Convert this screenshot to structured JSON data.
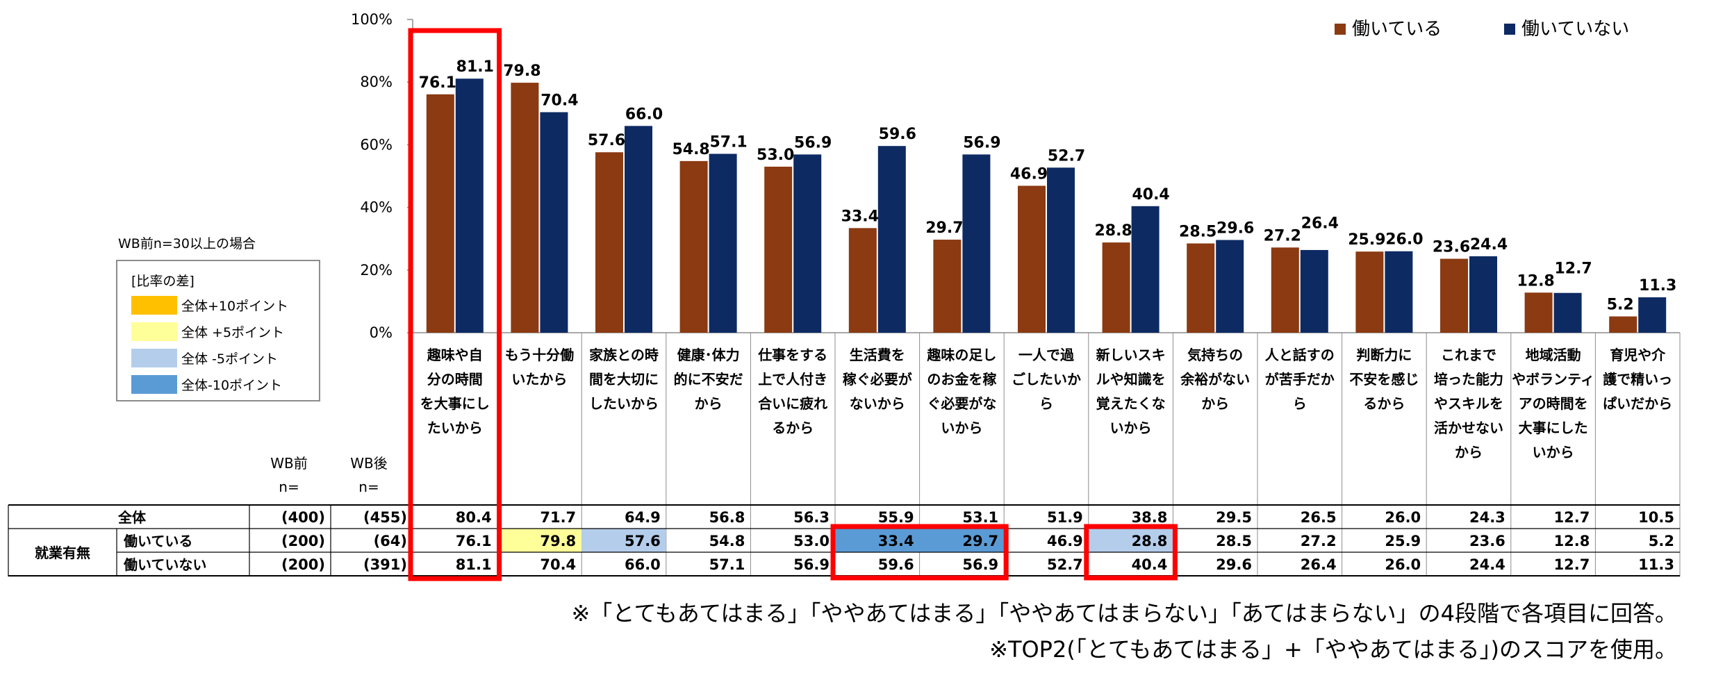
{
  "chart_data": {
    "type": "bar",
    "ylim": [
      0,
      100
    ],
    "y_ticks": [
      "100%",
      "80%",
      "60%",
      "40%",
      "20%",
      "0%"
    ],
    "categories": [
      "趣味や自分の時間を大事にしたいから",
      "もう十分働いたから",
      "家族との時間を大切にしたいから",
      "健康・体力的に不安だから",
      "仕事をする上で人付き合いに疲れるから",
      "生活費を稼ぐ必要がないから",
      "趣味の足しのお金を稼ぐ必要がないから",
      "一人で過ごしたいから",
      "新しいスキルや知識を覚えたくないから",
      "気持ちの余裕がないから",
      "人と話すのが苦手だから",
      "判断力に不安を感じるから",
      "これまで培った能力やスキルを活かせないから",
      "地域活動やボランティアの時間を大事にしたいから",
      "育児や介護で精いっぱいだから"
    ],
    "category_lines": [
      [
        "趣味や自",
        "分の時間",
        "を大事にし",
        "たいから"
      ],
      [
        "もう十分働",
        "いたから"
      ],
      [
        "家族との時",
        "間を大切に",
        "したいから"
      ],
      [
        "健康･体力",
        "的に不安だ",
        "から"
      ],
      [
        "仕事をする",
        "上で人付き",
        "合いに疲れ",
        "るから"
      ],
      [
        "生活費を",
        "稼ぐ必要が",
        "ないから"
      ],
      [
        "趣味の足し",
        "のお金を稼",
        "ぐ必要がな",
        "いから"
      ],
      [
        "一人で過",
        "ごしたいか",
        "ら"
      ],
      [
        "新しいスキ",
        "ルや知識を",
        "覚えたくな",
        "いから"
      ],
      [
        "気持ちの",
        "余裕がない",
        "から"
      ],
      [
        "人と話すの",
        "が苦手だか",
        "ら"
      ],
      [
        "判断力に",
        "不安を感じ",
        "るから"
      ],
      [
        "これまで",
        "培った能力",
        "やスキルを",
        "活かせない",
        "から"
      ],
      [
        "地域活動",
        "やボランティ",
        "アの時間を",
        "大事にした",
        "いから"
      ],
      [
        "育児や介",
        "護で精いっ",
        "ぱいだから"
      ]
    ],
    "series": [
      {
        "name": "働いている",
        "color": "#8B3A12",
        "values": [
          76.1,
          79.8,
          57.6,
          54.8,
          53.0,
          33.4,
          29.7,
          46.9,
          28.8,
          28.5,
          27.2,
          25.9,
          23.6,
          12.8,
          5.2
        ]
      },
      {
        "name": "働いていない",
        "color": "#0D2A63",
        "values": [
          81.1,
          70.4,
          66.0,
          57.1,
          56.9,
          59.6,
          56.9,
          52.7,
          40.4,
          29.6,
          26.4,
          26.0,
          24.4,
          12.7,
          11.3
        ]
      }
    ],
    "value_labels": [
      [
        "76.1",
        "79.8",
        "57.6",
        "54.8",
        "53.0",
        "33.4",
        "29.7",
        "46.9",
        "28.8",
        "28.5",
        "27.2",
        "25.9",
        "23.6",
        "12.8",
        "5.2"
      ],
      [
        "81.1",
        "70.4",
        "66.0",
        "57.1",
        "56.9",
        "59.6",
        "56.9",
        "52.7",
        "40.4",
        "29.6",
        "26.4",
        "26.0",
        "24.4",
        "12.7",
        "11.3"
      ]
    ],
    "legend_position": "top-right"
  },
  "table": {
    "header_wb_mae": [
      "WB前",
      "n="
    ],
    "header_wb_go": [
      "WB後",
      "n="
    ],
    "group_label": "就業有無",
    "rows": [
      {
        "label": "全体",
        "n_before": "(400)",
        "n_after": "(455)",
        "cells": [
          "80.4",
          "71.7",
          "64.9",
          "56.8",
          "56.3",
          "55.9",
          "53.1",
          "51.9",
          "38.8",
          "29.5",
          "26.5",
          "26.0",
          "24.3",
          "12.7",
          "10.5"
        ],
        "highlights": [
          "",
          "",
          "",
          "",
          "",
          "",
          "",
          "",
          "",
          "",
          "",
          "",
          "",
          "",
          ""
        ]
      },
      {
        "label": "働いている",
        "n_before": "(200)",
        "n_after": "(64)",
        "cells": [
          "76.1",
          "79.8",
          "57.6",
          "54.8",
          "53.0",
          "33.4",
          "29.7",
          "46.9",
          "28.8",
          "28.5",
          "27.2",
          "25.9",
          "23.6",
          "12.8",
          "5.2"
        ],
        "highlights": [
          "",
          "#FFFF99",
          "#B4CDEB",
          "",
          "",
          "#5B9BD5",
          "#5B9BD5",
          "",
          "#B4CDEB",
          "",
          "",
          "",
          "",
          "",
          ""
        ]
      },
      {
        "label": "働いていない",
        "n_before": "(200)",
        "n_after": "(391)",
        "cells": [
          "81.1",
          "70.4",
          "66.0",
          "57.1",
          "56.9",
          "59.6",
          "56.9",
          "52.7",
          "40.4",
          "29.6",
          "26.4",
          "26.0",
          "24.4",
          "12.7",
          "11.3"
        ],
        "highlights": [
          "",
          "",
          "",
          "",
          "",
          "",
          "",
          "",
          "",
          "",
          "",
          "",
          "",
          "",
          ""
        ]
      }
    ]
  },
  "side_note": "WB前n=30以上の場合",
  "legend_box": {
    "title": "[比率の差]",
    "items": [
      {
        "label": "全体+10ポイント",
        "color": "#FFC000"
      },
      {
        "label": "全体 +5ポイント",
        "color": "#FFFF99"
      },
      {
        "label": "全体 -5ポイント",
        "color": "#B4CDEB"
      },
      {
        "label": "全体-10ポイント",
        "color": "#5B9BD5"
      }
    ]
  },
  "highlight_color": "#FF0000",
  "footnotes": [
    "※「とてもあてはまる」「ややあてはまる」「ややあてはまらない」「あてはまらない」の4段階で各項目に回答。",
    "※TOP2(「とてもあてはまる」+「ややあてはまる」)のスコアを使用。"
  ]
}
